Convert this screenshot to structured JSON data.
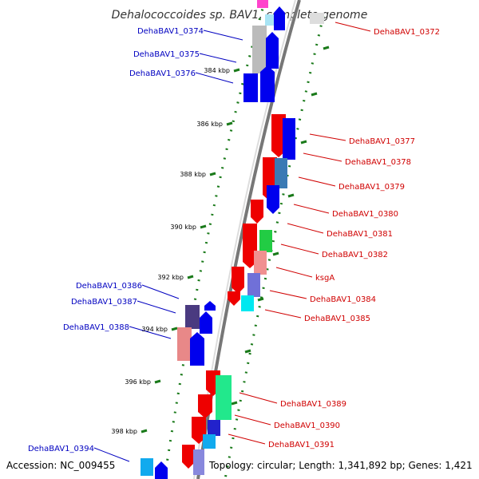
{
  "title": "Dehalococcoides sp. BAV1, complete genome",
  "footer": {
    "accession": "Accession: NC_009455",
    "topology": "Topology: circular; Length: 1,341,892 bp; Genes: 1,421"
  },
  "colors": {
    "backbone": "#909090",
    "ticks": "#1a7a1a",
    "forward_label": "#0000c0",
    "reverse_label": "#d00000"
  },
  "ticks": [
    {
      "label": "384 kbp"
    },
    {
      "label": "386 kbp"
    },
    {
      "label": "388 kbp"
    },
    {
      "label": "390 kbp"
    },
    {
      "label": "392 kbp"
    },
    {
      "label": "394 kbp"
    },
    {
      "label": "396 kbp"
    },
    {
      "label": "398 kbp"
    }
  ],
  "genes_left": [
    {
      "name": "DehaBAV1_0374"
    },
    {
      "name": "DehaBAV1_0375"
    },
    {
      "name": "DehaBAV1_0376"
    },
    {
      "name": "DehaBAV1_0386"
    },
    {
      "name": "DehaBAV1_0387"
    },
    {
      "name": "DehaBAV1_0388"
    },
    {
      "name": "DehaBAV1_0394"
    }
  ],
  "genes_right": [
    {
      "name": "DehaBAV1_0372"
    },
    {
      "name": "DehaBAV1_0377"
    },
    {
      "name": "DehaBAV1_0378"
    },
    {
      "name": "DehaBAV1_0379"
    },
    {
      "name": "DehaBAV1_0380"
    },
    {
      "name": "DehaBAV1_0381"
    },
    {
      "name": "DehaBAV1_0382"
    },
    {
      "name": "ksgA"
    },
    {
      "name": "DehaBAV1_0384"
    },
    {
      "name": "DehaBAV1_0385"
    },
    {
      "name": "DehaBAV1_0389"
    },
    {
      "name": "DehaBAV1_0390"
    },
    {
      "name": "DehaBAV1_0391"
    }
  ]
}
